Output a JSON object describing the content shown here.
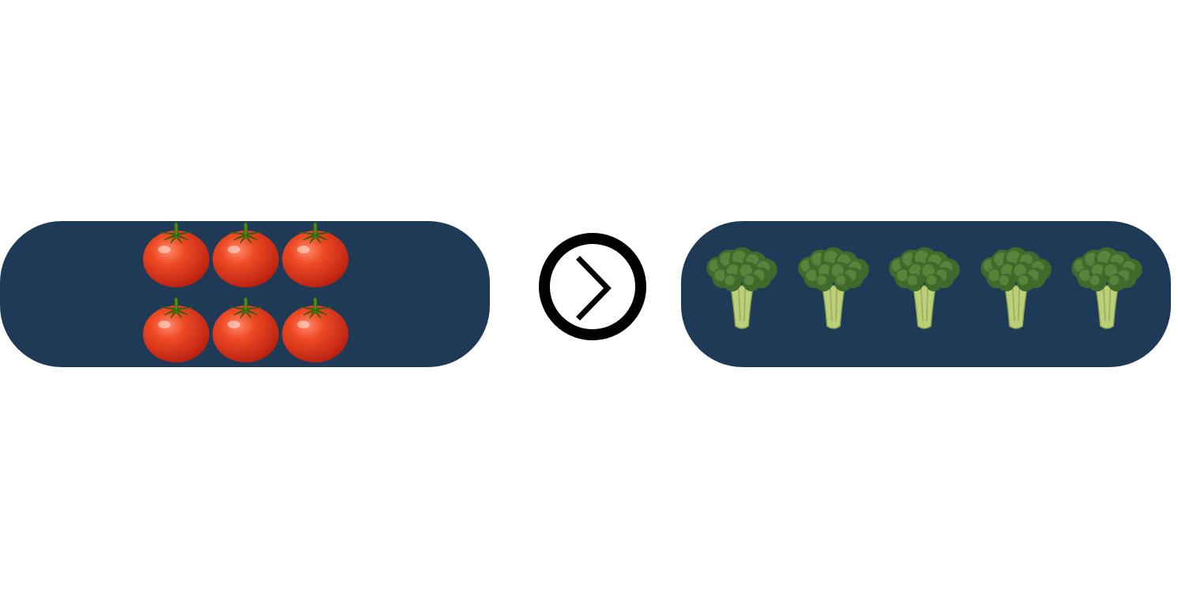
{
  "colors": {
    "panel_bg": "#1f3a57",
    "tomato_red": "#d8301a",
    "tomato_highlight": "#ff8a6a",
    "stem_green": "#4f8d1c",
    "broccoli_dark": "#3e6a2c",
    "broccoli_mid": "#5f8a3f",
    "broccoli_stem": "#bcd07a",
    "arrow_ring": "#000000"
  },
  "left_group": {
    "item_icon": "tomato-icon",
    "count": 6,
    "rows": 2,
    "per_row": 3
  },
  "separator": {
    "icon": "chevron-right-circle-icon"
  },
  "right_group": {
    "item_icon": "broccoli-icon",
    "count": 5,
    "rows": 1,
    "per_row": 5
  }
}
